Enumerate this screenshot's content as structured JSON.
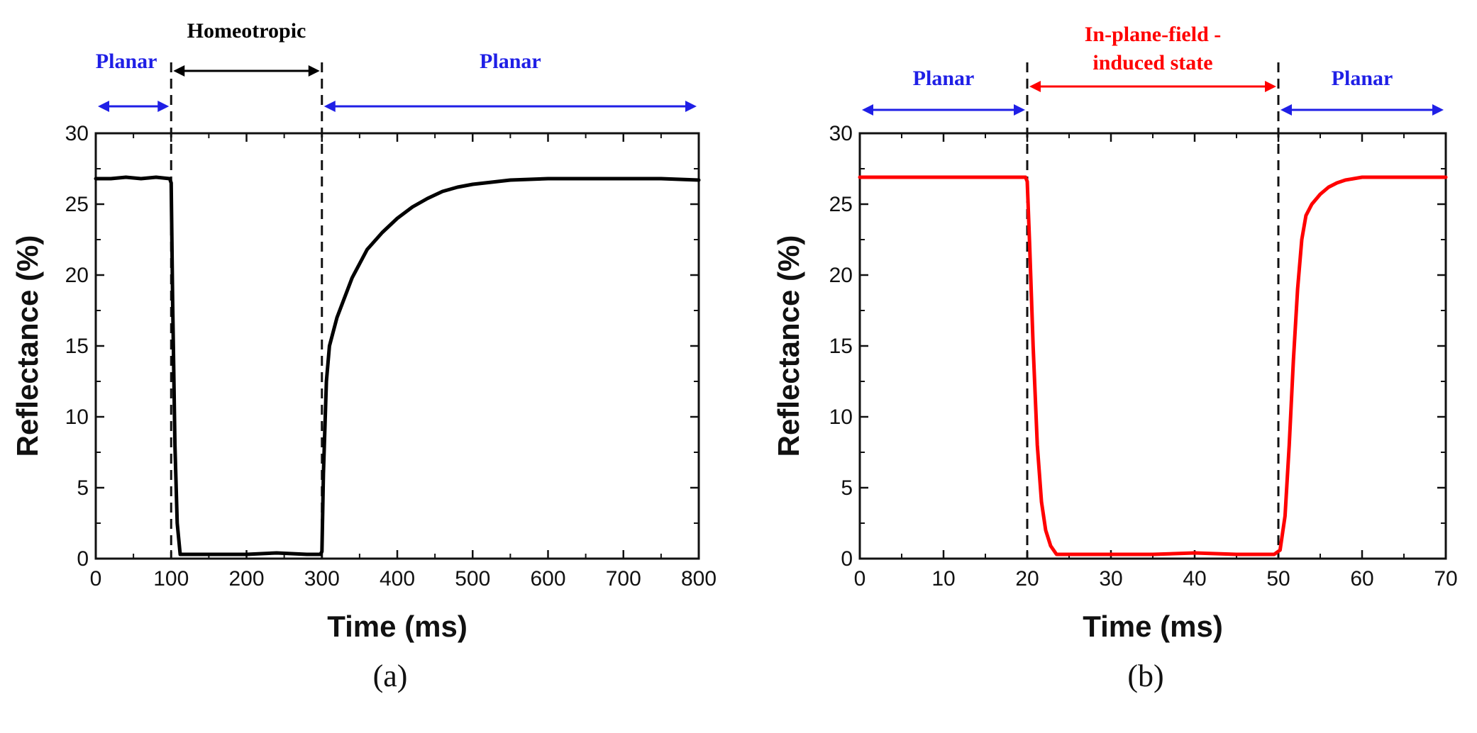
{
  "chart_data": [
    {
      "type": "line",
      "panel": "(a)",
      "xlabel": "Time (ms)",
      "ylabel": "Reflectance (%)",
      "xlim": [
        0,
        800
      ],
      "ylim": [
        0,
        30
      ],
      "xticks": [
        0,
        100,
        200,
        300,
        400,
        500,
        600,
        700,
        800
      ],
      "yticks": [
        0,
        5,
        10,
        15,
        20,
        25,
        30
      ],
      "line_color": "#000000",
      "transitions": [
        100,
        300
      ],
      "regions": [
        {
          "label": "Planar",
          "from": 0,
          "to": 100,
          "color": "#1f1fe6"
        },
        {
          "label": "Homeotropic",
          "from": 100,
          "to": 300,
          "color": "#000000"
        },
        {
          "label": "Planar",
          "from": 300,
          "to": 800,
          "color": "#1f1fe6"
        }
      ],
      "series": [
        {
          "name": "reflectance",
          "x": [
            0,
            20,
            40,
            60,
            80,
            98,
            100,
            102,
            105,
            108,
            112,
            130,
            160,
            200,
            240,
            280,
            298,
            300,
            302,
            306,
            310,
            320,
            340,
            360,
            380,
            400,
            420,
            440,
            460,
            480,
            500,
            550,
            600,
            650,
            700,
            750,
            800
          ],
          "y": [
            26.8,
            26.8,
            26.9,
            26.8,
            26.9,
            26.8,
            26.5,
            18.0,
            8.0,
            2.5,
            0.3,
            0.3,
            0.3,
            0.3,
            0.4,
            0.3,
            0.3,
            0.5,
            6.0,
            12.5,
            15.0,
            17.0,
            19.8,
            21.8,
            23.0,
            24.0,
            24.8,
            25.4,
            25.9,
            26.2,
            26.4,
            26.7,
            26.8,
            26.8,
            26.8,
            26.8,
            26.7
          ]
        }
      ]
    },
    {
      "type": "line",
      "panel": "(b)",
      "xlabel": "Time (ms)",
      "ylabel": "Reflectance (%)",
      "xlim": [
        0,
        70
      ],
      "ylim": [
        0,
        30
      ],
      "xticks": [
        0,
        10,
        20,
        30,
        40,
        50,
        60,
        70
      ],
      "xtick_labels": [
        "0",
        "10",
        "20",
        "30",
        "40",
        "50",
        "60",
        "70"
      ],
      "yticks": [
        0,
        5,
        10,
        15,
        20,
        25,
        30
      ],
      "line_color": "#ff0000",
      "transitions": [
        20,
        50
      ],
      "regions": [
        {
          "label": "Planar",
          "from": 0,
          "to": 20,
          "color": "#1f1fe6"
        },
        {
          "label": "In-plane-field - induced state",
          "lines": [
            "In-plane-field -",
            "induced state"
          ],
          "from": 20,
          "to": 50,
          "color": "#ff0000"
        },
        {
          "label": "Planar",
          "from": 50,
          "to": 70,
          "color": "#1f1fe6"
        }
      ],
      "series": [
        {
          "name": "reflectance",
          "x": [
            0,
            5,
            10,
            15,
            19.8,
            20,
            20.3,
            20.7,
            21.2,
            21.7,
            22.2,
            22.8,
            23.5,
            25,
            30,
            35,
            40,
            45,
            49.5,
            50.2,
            50.8,
            51.3,
            51.8,
            52.3,
            52.8,
            53.3,
            54,
            55,
            56,
            57,
            58,
            60,
            65,
            70
          ],
          "y": [
            26.9,
            26.9,
            26.9,
            26.9,
            26.9,
            26.6,
            22.0,
            15.0,
            8.0,
            4.0,
            2.0,
            0.9,
            0.3,
            0.3,
            0.3,
            0.3,
            0.4,
            0.3,
            0.3,
            0.6,
            3.0,
            8.0,
            14.0,
            19.0,
            22.5,
            24.2,
            25.0,
            25.7,
            26.2,
            26.5,
            26.7,
            26.9,
            26.9,
            26.9
          ]
        }
      ]
    }
  ]
}
